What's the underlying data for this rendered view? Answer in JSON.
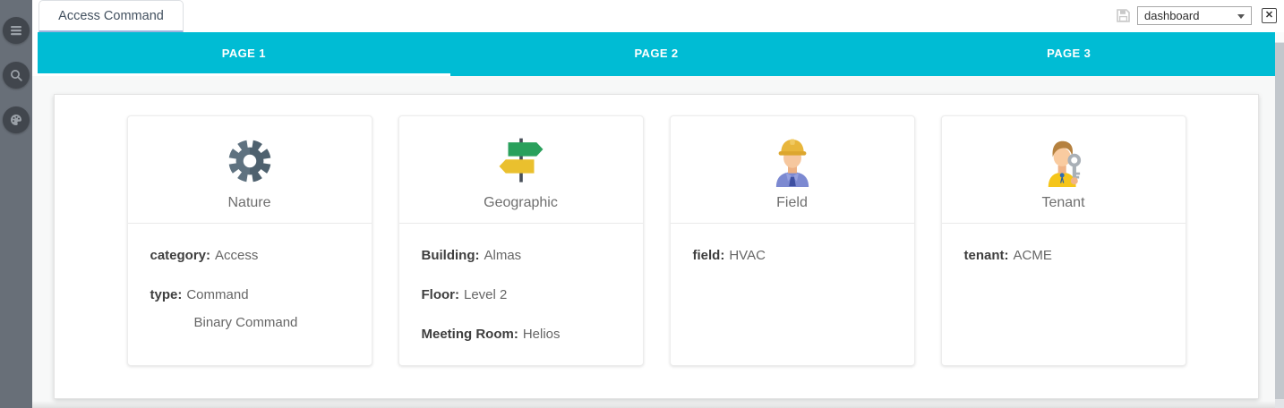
{
  "app": {
    "tab_title": "Access Command",
    "view_selector": {
      "value": "dashboard"
    },
    "close_label": "✕"
  },
  "sidebar": {
    "items": [
      {
        "name": "menu",
        "icon": "menu-icon"
      },
      {
        "name": "search",
        "icon": "search-icon"
      },
      {
        "name": "theme",
        "icon": "palette-icon"
      }
    ]
  },
  "pages": {
    "tabs": [
      {
        "label": "PAGE 1",
        "active": true
      },
      {
        "label": "PAGE 2",
        "active": false
      },
      {
        "label": "PAGE 3",
        "active": false
      }
    ]
  },
  "cards": [
    {
      "title": "Nature",
      "icon": "gear-icon",
      "rows": [
        {
          "label": "category",
          "value": "Access",
          "indent": false
        },
        {
          "label": "type",
          "value": "Command",
          "indent": false
        },
        {
          "label": "",
          "value": "Binary Command",
          "indent": true
        }
      ]
    },
    {
      "title": "Geographic",
      "icon": "signpost-icon",
      "rows": [
        {
          "label": "Building",
          "value": "Almas",
          "indent": false
        },
        {
          "label": "Floor",
          "value": "Level 2",
          "indent": false
        },
        {
          "label": "Meeting Room",
          "value": "Helios",
          "indent": false
        }
      ]
    },
    {
      "title": "Field",
      "icon": "worker-icon",
      "rows": [
        {
          "label": "field",
          "value": "HVAC",
          "indent": false
        }
      ]
    },
    {
      "title": "Tenant",
      "icon": "tenant-icon",
      "rows": [
        {
          "label": "tenant",
          "value": "ACME",
          "indent": false
        }
      ]
    }
  ],
  "colors": {
    "accent": "#00bcd4",
    "sidebar_bg": "#686f78",
    "tab_underline_active": "#ffffff",
    "browser_tab_underline": "#9db4de"
  }
}
